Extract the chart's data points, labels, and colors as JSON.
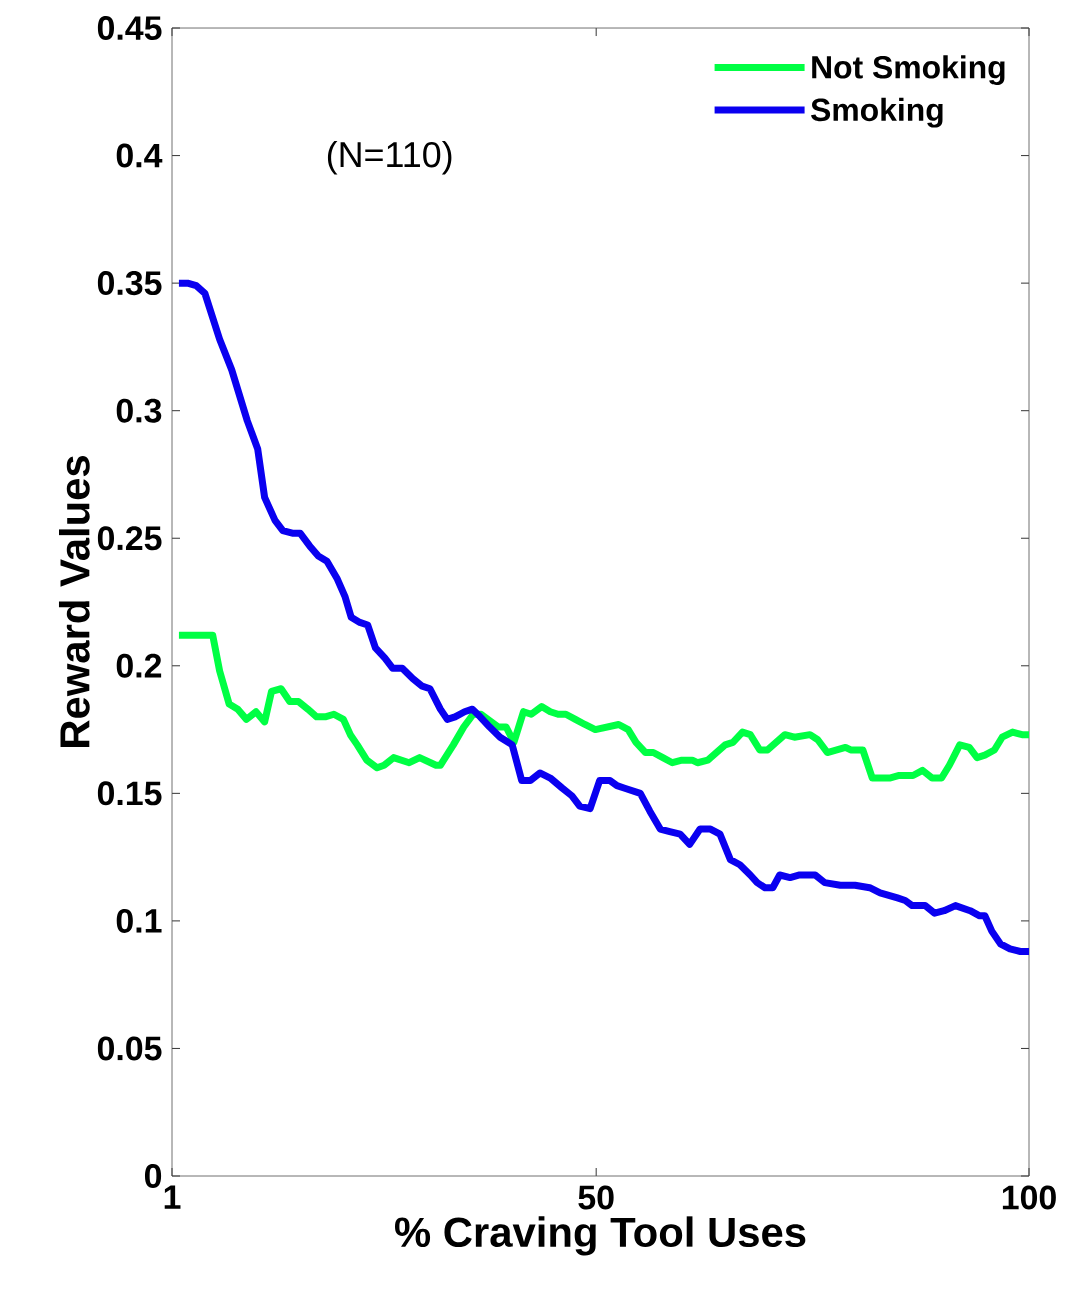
{
  "chart_data": {
    "type": "line",
    "xlabel": "% Craving Tool Uses",
    "ylabel": "Reward Values",
    "xlim": [
      1,
      100
    ],
    "ylim": [
      0,
      0.45
    ],
    "xticks": [
      1,
      50,
      100
    ],
    "yticks": [
      0,
      0.05,
      0.1,
      0.15,
      0.2,
      0.25,
      0.3,
      0.35,
      0.4,
      0.45
    ],
    "legend": "top right",
    "grid": false,
    "annotations": [
      "(N=110)"
    ],
    "series": [
      {
        "name": "Not Smoking",
        "color": "#00ff44",
        "x": [
          1.8,
          5.7,
          6.5,
          7.6,
          8.6,
          9.6,
          10.7,
          11.7,
          12.5,
          13.6,
          14.6,
          15.6,
          16.7,
          17.7,
          18.7,
          19.7,
          20.8,
          21.6,
          22.4,
          23.5,
          24.7,
          25.5,
          26.6,
          28.4,
          29.6,
          31.5,
          32.0,
          33.5,
          34.7,
          35.8,
          36.7,
          38.7,
          39.6,
          40.5,
          41.6,
          42.5,
          43.7,
          44.7,
          45.6,
          46.5,
          47.6,
          48.7,
          49.9,
          52.6,
          53.7,
          54.6,
          55.7,
          56.6,
          57.7,
          58.8,
          59.9,
          61.1,
          61.7,
          62.9,
          64.9,
          65.8,
          66.9,
          67.8,
          68.9,
          69.8,
          71.8,
          72.9,
          74.7,
          75.6,
          76.7,
          78.8,
          79.4,
          80.8,
          81.9,
          83.9,
          85.0,
          86.6,
          87.7,
          88.8,
          89.9,
          90.8,
          92.0,
          93.1,
          94.0,
          94.9,
          96.0,
          96.9,
          98.1,
          99.2,
          100
        ],
        "values": [
          0.212,
          0.212,
          0.198,
          0.185,
          0.183,
          0.179,
          0.182,
          0.178,
          0.19,
          0.191,
          0.186,
          0.186,
          0.183,
          0.18,
          0.18,
          0.181,
          0.179,
          0.173,
          0.169,
          0.163,
          0.16,
          0.161,
          0.164,
          0.162,
          0.164,
          0.161,
          0.161,
          0.169,
          0.176,
          0.181,
          0.181,
          0.176,
          0.176,
          0.17,
          0.182,
          0.181,
          0.184,
          0.182,
          0.181,
          0.181,
          0.179,
          0.177,
          0.175,
          0.177,
          0.175,
          0.17,
          0.166,
          0.166,
          0.164,
          0.162,
          0.163,
          0.163,
          0.162,
          0.163,
          0.169,
          0.17,
          0.174,
          0.173,
          0.167,
          0.167,
          0.173,
          0.172,
          0.173,
          0.171,
          0.166,
          0.168,
          0.167,
          0.167,
          0.156,
          0.156,
          0.157,
          0.157,
          0.159,
          0.156,
          0.156,
          0.161,
          0.169,
          0.168,
          0.164,
          0.165,
          0.167,
          0.172,
          0.174,
          0.173,
          0.173
        ]
      },
      {
        "name": "Smoking",
        "color": "#0a00f0",
        "x": [
          1.8,
          2.8,
          3.8,
          4.8,
          6.5,
          7.9,
          9.7,
          10.9,
          11.7,
          12.9,
          13.8,
          14.9,
          15.8,
          16.9,
          17.9,
          18.9,
          20.1,
          21.0,
          21.7,
          22.7,
          23.6,
          24.5,
          25.6,
          26.5,
          27.6,
          28.8,
          29.9,
          30.8,
          32.0,
          32.8,
          33.7,
          34.8,
          35.7,
          36.6,
          37.7,
          38.9,
          40.3,
          41.4,
          42.4,
          43.5,
          44.7,
          46.1,
          47.2,
          48.1,
          49.3,
          50.4,
          51.6,
          52.4,
          53.3,
          55.1,
          56.2,
          57.4,
          58.5,
          59.7,
          60.8,
          62.0,
          63.2,
          64.3,
          65.5,
          66.6,
          67.8,
          68.6,
          69.5,
          70.4,
          71.2,
          72.4,
          73.5,
          75.3,
          76.4,
          78.2,
          79.9,
          81.6,
          82.8,
          84.8,
          85.7,
          86.5,
          88.0,
          89.1,
          90.2,
          91.5,
          93.2,
          94.3,
          94.9,
          95.7,
          96.7,
          97.8,
          99.0,
          100
        ],
        "values": [
          0.35,
          0.35,
          0.349,
          0.346,
          0.328,
          0.316,
          0.296,
          0.285,
          0.266,
          0.257,
          0.253,
          0.252,
          0.252,
          0.247,
          0.243,
          0.241,
          0.234,
          0.227,
          0.219,
          0.217,
          0.216,
          0.207,
          0.203,
          0.199,
          0.199,
          0.195,
          0.192,
          0.191,
          0.183,
          0.179,
          0.18,
          0.182,
          0.183,
          0.18,
          0.176,
          0.172,
          0.169,
          0.155,
          0.155,
          0.158,
          0.156,
          0.152,
          0.149,
          0.145,
          0.144,
          0.155,
          0.155,
          0.153,
          0.152,
          0.15,
          0.143,
          0.136,
          0.135,
          0.134,
          0.13,
          0.136,
          0.136,
          0.134,
          0.124,
          0.122,
          0.118,
          0.115,
          0.113,
          0.113,
          0.118,
          0.117,
          0.118,
          0.118,
          0.115,
          0.114,
          0.114,
          0.113,
          0.111,
          0.109,
          0.108,
          0.106,
          0.106,
          0.103,
          0.104,
          0.106,
          0.104,
          0.102,
          0.102,
          0.096,
          0.091,
          0.089,
          0.088,
          0.088
        ]
      }
    ]
  }
}
